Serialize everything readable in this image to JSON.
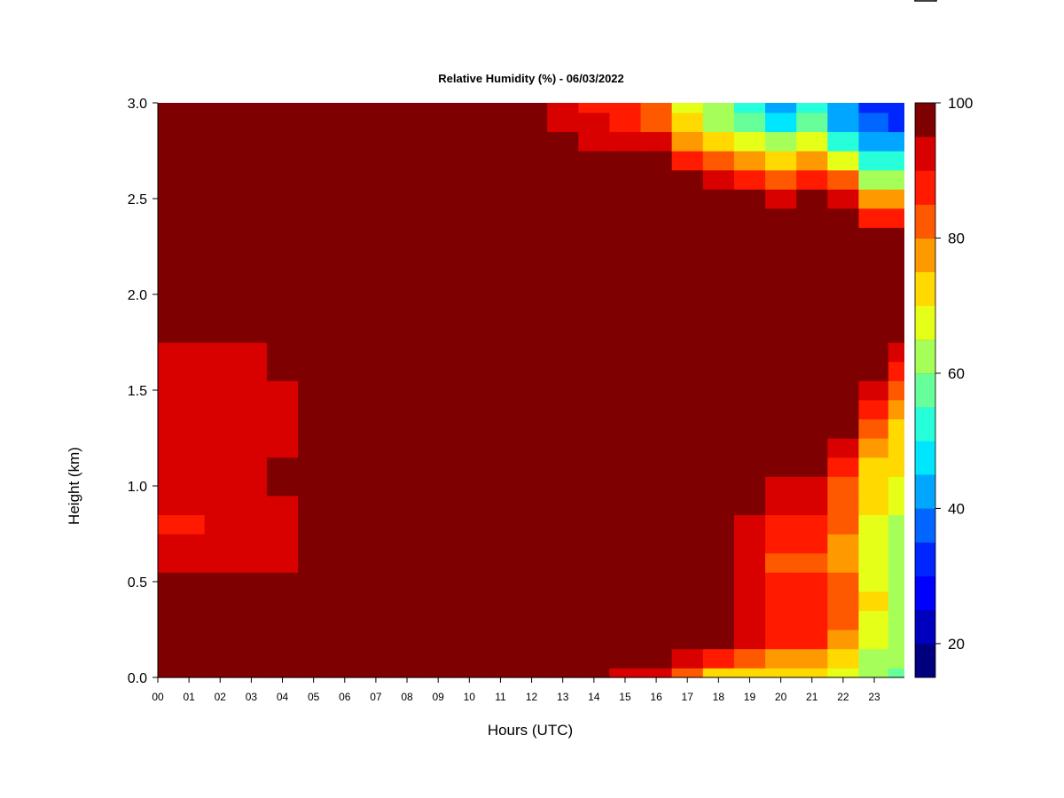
{
  "chart_data": {
    "type": "heatmap",
    "title": "Relative Humidity (%) - 06/03/2022",
    "xlabel": "Hours (UTC)",
    "ylabel": "Height (km)",
    "x_ticks": [
      "00",
      "01",
      "02",
      "03",
      "04",
      "05",
      "06",
      "07",
      "08",
      "09",
      "10",
      "11",
      "12",
      "13",
      "14",
      "15",
      "16",
      "17",
      "18",
      "19",
      "20",
      "21",
      "22",
      "23"
    ],
    "xlim": [
      0,
      24
    ],
    "y_ticks": [
      "0.0",
      "0.5",
      "1.0",
      "1.5",
      "2.0",
      "2.5",
      "3.0"
    ],
    "ylim": [
      0,
      3
    ],
    "colorbar": {
      "range": [
        15,
        100
      ],
      "tick_labels": [
        "20",
        "40",
        "60",
        "80",
        "100"
      ],
      "colors": [
        "#00007f",
        "#0000bf",
        "#0000ff",
        "#0026ff",
        "#0066ff",
        "#00a6ff",
        "#00e6ff",
        "#26ffd9",
        "#66ff99",
        "#a6ff59",
        "#e6ff19",
        "#ffd900",
        "#ff9900",
        "#ff5900",
        "#ff1a00",
        "#d90000",
        "#7f0000"
      ]
    },
    "hours": [
      0,
      1,
      2,
      3,
      4,
      5,
      6,
      7,
      8,
      9,
      10,
      11,
      12,
      13,
      14,
      15,
      16,
      17,
      18,
      19,
      20,
      21,
      22,
      23,
      23.9
    ],
    "heights_km": [
      0.0,
      0.1,
      0.2,
      0.3,
      0.4,
      0.5,
      0.6,
      0.7,
      0.8,
      0.9,
      1.0,
      1.1,
      1.2,
      1.3,
      1.4,
      1.5,
      1.6,
      1.7,
      1.8,
      1.9,
      2.0,
      2.1,
      2.2,
      2.3,
      2.4,
      2.5,
      2.6,
      2.7,
      2.8,
      2.9,
      3.0
    ],
    "rh_percent": [
      [
        100,
        100,
        100,
        100,
        100,
        100,
        100,
        100,
        100,
        100,
        100,
        100,
        100,
        100,
        96,
        92,
        90,
        80,
        72,
        70,
        70,
        70,
        66,
        60,
        58
      ],
      [
        100,
        100,
        100,
        100,
        100,
        100,
        100,
        100,
        100,
        100,
        100,
        100,
        100,
        100,
        100,
        100,
        98,
        92,
        86,
        80,
        78,
        78,
        72,
        64,
        60
      ],
      [
        100,
        100,
        100,
        100,
        100,
        100,
        100,
        100,
        100,
        100,
        100,
        100,
        100,
        100,
        100,
        100,
        100,
        100,
        95,
        90,
        86,
        86,
        78,
        68,
        62
      ],
      [
        100,
        100,
        100,
        100,
        100,
        100,
        100,
        100,
        100,
        100,
        100,
        100,
        100,
        100,
        100,
        100,
        100,
        100,
        96,
        92,
        88,
        88,
        80,
        68,
        62
      ],
      [
        100,
        100,
        100,
        100,
        100,
        100,
        100,
        100,
        100,
        100,
        100,
        100,
        100,
        100,
        100,
        100,
        100,
        100,
        96,
        92,
        88,
        88,
        82,
        70,
        64
      ],
      [
        96,
        96,
        96,
        97,
        97,
        100,
        100,
        99,
        99,
        100,
        100,
        100,
        100,
        100,
        98,
        98,
        98,
        100,
        96,
        90,
        86,
        86,
        80,
        68,
        62
      ],
      [
        93,
        93,
        93,
        94,
        94,
        99,
        99,
        97,
        97,
        98,
        98,
        98,
        99,
        98,
        96,
        96,
        96,
        99,
        95,
        90,
        84,
        84,
        78,
        66,
        62
      ],
      [
        90,
        90,
        90,
        92,
        93,
        97,
        97,
        95,
        95,
        96,
        96,
        97,
        98,
        97,
        95,
        95,
        96,
        100,
        96,
        92,
        86,
        86,
        78,
        66,
        62
      ],
      [
        88,
        88,
        90,
        91,
        92,
        96,
        96,
        95,
        95,
        96,
        96,
        97,
        98,
        96,
        95,
        95,
        96,
        100,
        97,
        94,
        88,
        88,
        80,
        68,
        64
      ],
      [
        92,
        92,
        92,
        94,
        94,
        98,
        98,
        97,
        97,
        98,
        98,
        98,
        99,
        98,
        97,
        97,
        98,
        100,
        99,
        96,
        90,
        90,
        82,
        70,
        66
      ],
      [
        93,
        93,
        93,
        94,
        95,
        98,
        98,
        99,
        99,
        99,
        99,
        99,
        100,
        100,
        100,
        100,
        100,
        100,
        100,
        98,
        92,
        92,
        84,
        72,
        68
      ],
      [
        93,
        93,
        93,
        94,
        95,
        98,
        98,
        99,
        99,
        99,
        100,
        100,
        100,
        100,
        100,
        100,
        100,
        100,
        100,
        100,
        95,
        95,
        88,
        74,
        70
      ],
      [
        92,
        92,
        92,
        93,
        94,
        97,
        97,
        98,
        98,
        98,
        100,
        100,
        100,
        100,
        100,
        100,
        100,
        100,
        100,
        100,
        98,
        98,
        92,
        76,
        72
      ],
      [
        91,
        91,
        91,
        93,
        94,
        97,
        97,
        98,
        98,
        98,
        100,
        100,
        100,
        100,
        100,
        100,
        100,
        100,
        100,
        100,
        100,
        100,
        95,
        80,
        74
      ],
      [
        91,
        91,
        91,
        93,
        94,
        97,
        97,
        98,
        98,
        98,
        100,
        100,
        100,
        100,
        100,
        100,
        100,
        100,
        100,
        100,
        100,
        100,
        98,
        85,
        78
      ],
      [
        92,
        92,
        92,
        93,
        94,
        97,
        97,
        98,
        98,
        99,
        100,
        100,
        100,
        100,
        100,
        100,
        100,
        100,
        100,
        100,
        100,
        100,
        100,
        90,
        82
      ],
      [
        93,
        93,
        93,
        94,
        95,
        98,
        98,
        98,
        98,
        99,
        100,
        100,
        100,
        100,
        100,
        100,
        100,
        100,
        100,
        100,
        100,
        100,
        100,
        95,
        88
      ],
      [
        94,
        94,
        94,
        94,
        95,
        98,
        98,
        98,
        98,
        99,
        100,
        100,
        100,
        100,
        100,
        100,
        100,
        100,
        100,
        100,
        100,
        100,
        100,
        98,
        92
      ],
      [
        95,
        95,
        95,
        95,
        96,
        99,
        99,
        99,
        99,
        100,
        100,
        100,
        100,
        100,
        100,
        100,
        100,
        100,
        100,
        100,
        100,
        100,
        100,
        100,
        97
      ],
      [
        100,
        100,
        100,
        98,
        100,
        100,
        100,
        100,
        100,
        100,
        100,
        100,
        100,
        100,
        100,
        100,
        100,
        100,
        100,
        100,
        100,
        100,
        100,
        100,
        100
      ],
      [
        100,
        100,
        100,
        99,
        100,
        100,
        100,
        100,
        100,
        100,
        100,
        100,
        100,
        100,
        100,
        100,
        100,
        100,
        100,
        100,
        100,
        100,
        100,
        100,
        100
      ],
      [
        100,
        100,
        100,
        100,
        100,
        100,
        100,
        100,
        100,
        100,
        100,
        100,
        100,
        100,
        100,
        100,
        100,
        100,
        100,
        100,
        100,
        100,
        100,
        100,
        100
      ],
      [
        100,
        100,
        100,
        100,
        100,
        100,
        100,
        100,
        100,
        100,
        100,
        100,
        100,
        100,
        100,
        100,
        100,
        100,
        100,
        100,
        100,
        100,
        100,
        100,
        100
      ],
      [
        100,
        100,
        100,
        100,
        100,
        100,
        100,
        100,
        100,
        100,
        100,
        100,
        100,
        100,
        100,
        100,
        100,
        100,
        100,
        100,
        100,
        100,
        100,
        96,
        96
      ],
      [
        100,
        100,
        100,
        100,
        100,
        100,
        100,
        100,
        100,
        100,
        100,
        100,
        100,
        100,
        100,
        100,
        100,
        100,
        100,
        100,
        98,
        100,
        100,
        88,
        88
      ],
      [
        100,
        100,
        100,
        100,
        100,
        100,
        100,
        100,
        100,
        100,
        100,
        100,
        100,
        100,
        100,
        100,
        100,
        100,
        98,
        96,
        90,
        96,
        94,
        78,
        78
      ],
      [
        100,
        100,
        100,
        100,
        100,
        100,
        100,
        100,
        100,
        100,
        100,
        100,
        100,
        100,
        100,
        100,
        100,
        96,
        92,
        88,
        80,
        88,
        82,
        62,
        62
      ],
      [
        100,
        100,
        100,
        100,
        100,
        100,
        100,
        100,
        100,
        100,
        100,
        100,
        100,
        100,
        98,
        98,
        96,
        88,
        84,
        76,
        70,
        76,
        66,
        50,
        50
      ],
      [
        100,
        100,
        100,
        100,
        100,
        100,
        100,
        100,
        100,
        100,
        100,
        100,
        100,
        98,
        94,
        94,
        90,
        78,
        72,
        66,
        62,
        66,
        52,
        42,
        42
      ],
      [
        100,
        100,
        100,
        98,
        98,
        100,
        100,
        100,
        100,
        100,
        100,
        98,
        98,
        94,
        90,
        88,
        84,
        70,
        64,
        56,
        48,
        56,
        44,
        36,
        34
      ],
      [
        100,
        100,
        100,
        98,
        98,
        100,
        100,
        100,
        100,
        100,
        100,
        98,
        97,
        92,
        88,
        86,
        82,
        66,
        60,
        52,
        44,
        52,
        40,
        32,
        30
      ]
    ]
  }
}
